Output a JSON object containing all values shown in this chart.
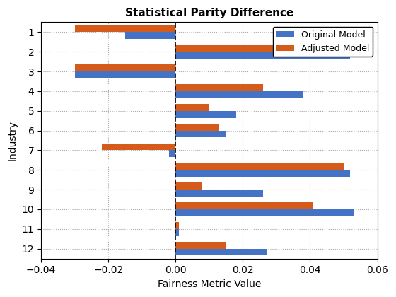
{
  "title": "Statistical Parity Difference",
  "xlabel": "Fairness Metric Value",
  "ylabel": "Industry",
  "industries": [
    "1",
    "2",
    "3",
    "4",
    "5",
    "6",
    "7",
    "8",
    "9",
    "10",
    "11",
    "12"
  ],
  "original_model": [
    -0.015,
    0.052,
    -0.03,
    0.038,
    0.018,
    0.015,
    -0.002,
    0.052,
    0.026,
    0.053,
    0.001,
    0.027
  ],
  "adjusted_model": [
    -0.03,
    0.041,
    -0.03,
    0.026,
    0.01,
    0.013,
    -0.022,
    0.05,
    0.008,
    0.041,
    0.001,
    0.015
  ],
  "original_color": "#4472C4",
  "adjusted_color": "#D45B1A",
  "xlim": [
    -0.04,
    0.06
  ],
  "bar_height": 0.35,
  "legend_labels": [
    "Original Model",
    "Adjusted Model"
  ],
  "vline_x": 0.0,
  "figsize": [
    5.6,
    4.2
  ],
  "dpi": 100
}
